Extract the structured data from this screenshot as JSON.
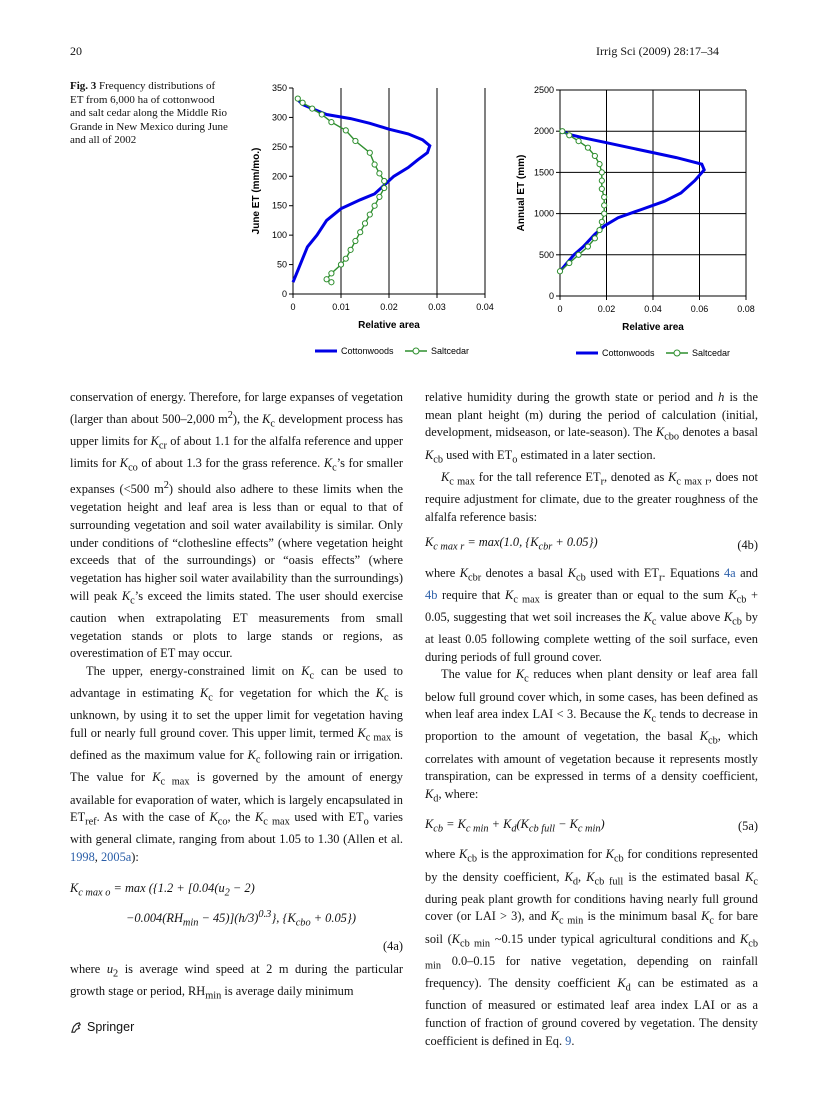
{
  "header": {
    "left": "20",
    "right": "Irrig Sci (2009) 28:17–34"
  },
  "figure": {
    "label": "Fig. 3",
    "caption": "Frequency distributions of ET from 6,000 ha of cottonwood and salt cedar along the Middle Rio Grande in New Mexico during June and all of 2002"
  },
  "chart_data": [
    {
      "type": "line",
      "xlabel": "Relative area",
      "ylabel": "June ET (mm/mo.)",
      "xlim": [
        0,
        0.04
      ],
      "ylim": [
        0,
        350
      ],
      "xticks": [
        "0",
        "0.01",
        "0.02",
        "0.03",
        "0.04"
      ],
      "yticks": [
        "0",
        "50",
        "100",
        "150",
        "200",
        "250",
        "300",
        "350"
      ],
      "grid": "vertical",
      "legend": "bottom",
      "series": [
        {
          "name": "Cottonwoods",
          "color": "#0000e6",
          "marker": "none",
          "points": [
            [
              0,
              20
            ],
            [
              0.001,
              40
            ],
            [
              0.002,
              60
            ],
            [
              0.003,
              80
            ],
            [
              0.005,
              100
            ],
            [
              0.007,
              125
            ],
            [
              0.01,
              145
            ],
            [
              0.014,
              160
            ],
            [
              0.017,
              170
            ],
            [
              0.019,
              185
            ],
            [
              0.021,
              200
            ],
            [
              0.024,
              215
            ],
            [
              0.026,
              228
            ],
            [
              0.028,
              240
            ],
            [
              0.0285,
              252
            ],
            [
              0.027,
              262
            ],
            [
              0.024,
              272
            ],
            [
              0.02,
              280
            ],
            [
              0.016,
              290
            ],
            [
              0.012,
              298
            ],
            [
              0.007,
              305
            ],
            [
              0.004,
              315
            ],
            [
              0.002,
              322
            ],
            [
              0.001,
              330
            ]
          ]
        },
        {
          "name": "Saltcedar",
          "color": "#2f8f2f",
          "marker": "circle",
          "points": [
            [
              0.008,
              20
            ],
            [
              0.007,
              25
            ],
            [
              0.008,
              35
            ],
            [
              0.01,
              50
            ],
            [
              0.011,
              60
            ],
            [
              0.012,
              75
            ],
            [
              0.013,
              90
            ],
            [
              0.014,
              105
            ],
            [
              0.015,
              120
            ],
            [
              0.016,
              135
            ],
            [
              0.017,
              150
            ],
            [
              0.018,
              165
            ],
            [
              0.019,
              180
            ],
            [
              0.019,
              192
            ],
            [
              0.018,
              205
            ],
            [
              0.017,
              220
            ],
            [
              0.016,
              240
            ],
            [
              0.013,
              260
            ],
            [
              0.011,
              278
            ],
            [
              0.008,
              292
            ],
            [
              0.006,
              305
            ],
            [
              0.004,
              315
            ],
            [
              0.002,
              325
            ],
            [
              0.001,
              332
            ]
          ]
        }
      ]
    },
    {
      "type": "line",
      "xlabel": "Relative area",
      "ylabel": "Annual ET (mm)",
      "xlim": [
        0,
        0.08
      ],
      "ylim": [
        0,
        2500
      ],
      "xticks": [
        "0",
        "0.02",
        "0.04",
        "0.06",
        "0.08"
      ],
      "yticks": [
        "0",
        "500",
        "1000",
        "1500",
        "2000",
        "2500"
      ],
      "grid": "both",
      "legend": "bottom",
      "series": [
        {
          "name": "Cottonwoods",
          "color": "#0000e6",
          "marker": "none",
          "points": [
            [
              0,
              300
            ],
            [
              0.003,
              400
            ],
            [
              0.006,
              500
            ],
            [
              0.01,
              600
            ],
            [
              0.015,
              750
            ],
            [
              0.019,
              850
            ],
            [
              0.025,
              950
            ],
            [
              0.035,
              1050
            ],
            [
              0.045,
              1150
            ],
            [
              0.052,
              1250
            ],
            [
              0.058,
              1400
            ],
            [
              0.062,
              1530
            ],
            [
              0.061,
              1600
            ],
            [
              0.05,
              1680
            ],
            [
              0.04,
              1740
            ],
            [
              0.03,
              1800
            ],
            [
              0.02,
              1860
            ],
            [
              0.01,
              1920
            ],
            [
              0.004,
              1960
            ],
            [
              0.001,
              2000
            ]
          ]
        },
        {
          "name": "Saltcedar",
          "color": "#2f8f2f",
          "marker": "circle",
          "points": [
            [
              0,
              300
            ],
            [
              0.004,
              400
            ],
            [
              0.008,
              500
            ],
            [
              0.012,
              600
            ],
            [
              0.015,
              700
            ],
            [
              0.017,
              800
            ],
            [
              0.018,
              900
            ],
            [
              0.019,
              1000
            ],
            [
              0.019,
              1100
            ],
            [
              0.019,
              1200
            ],
            [
              0.018,
              1300
            ],
            [
              0.018,
              1400
            ],
            [
              0.018,
              1500
            ],
            [
              0.017,
              1600
            ],
            [
              0.015,
              1700
            ],
            [
              0.012,
              1800
            ],
            [
              0.008,
              1880
            ],
            [
              0.004,
              1950
            ],
            [
              0.001,
              2000
            ]
          ]
        }
      ]
    }
  ],
  "footer": {
    "brand": "Springer"
  }
}
